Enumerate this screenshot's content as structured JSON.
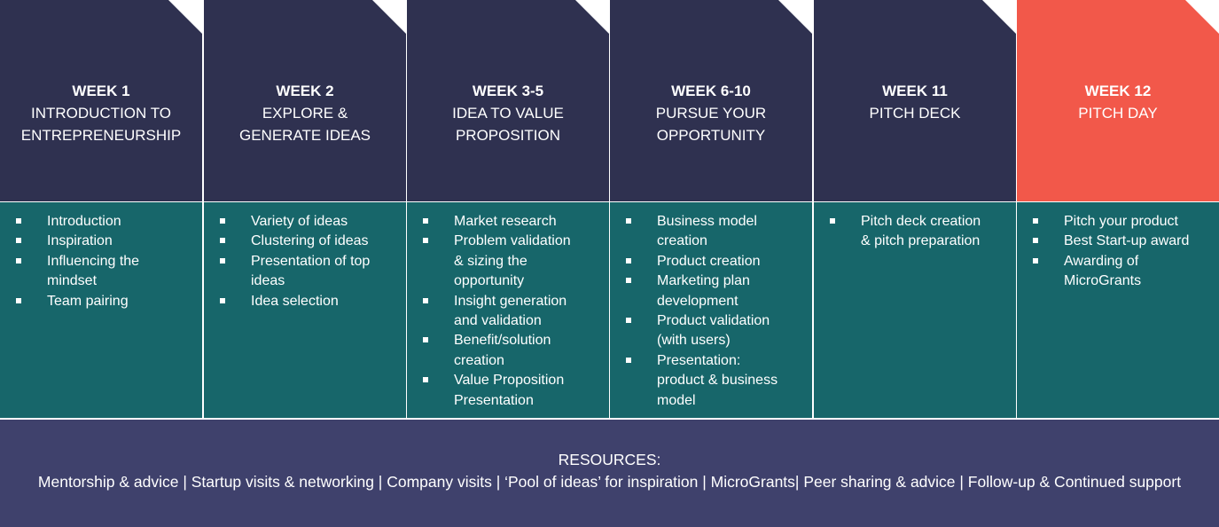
{
  "weeks": [
    {
      "week": "WEEK 1",
      "title": [
        "INTRODUCTION TO",
        "ENTREPRENEURSHIP"
      ],
      "items": [
        [
          "Introduction"
        ],
        [
          "Inspiration"
        ],
        [
          "Influencing the",
          "mindset"
        ],
        [
          "Team pairing"
        ]
      ]
    },
    {
      "week": "WEEK 2",
      "title": [
        "EXPLORE &",
        "GENERATE IDEAS"
      ],
      "items": [
        [
          "Variety of ideas"
        ],
        [
          "Clustering of ideas"
        ],
        [
          "Presentation of top",
          "ideas"
        ],
        [
          "Idea selection"
        ]
      ]
    },
    {
      "week": "WEEK 3-5",
      "title": [
        "IDEA TO VALUE",
        "PROPOSITION"
      ],
      "items": [
        [
          "Market research"
        ],
        [
          "Problem validation",
          "& sizing the",
          "opportunity"
        ],
        [
          "Insight generation",
          "and validation"
        ],
        [
          "Benefit/solution",
          "creation"
        ],
        [
          "Value Proposition",
          "Presentation"
        ]
      ]
    },
    {
      "week": "WEEK 6-10",
      "title": [
        "PURSUE YOUR",
        "OPPORTUNITY"
      ],
      "items": [
        [
          "Business model",
          "creation"
        ],
        [
          " Product creation"
        ],
        [
          " Marketing plan",
          "development"
        ],
        [
          " Product validation",
          "(with users)"
        ],
        [
          "Presentation:",
          "product & business",
          "model"
        ]
      ]
    },
    {
      "week": "WEEK 11",
      "title": [
        "PITCH DECK"
      ],
      "items": [
        [
          "Pitch deck creation",
          "& pitch preparation"
        ]
      ]
    },
    {
      "week": "WEEK 12",
      "title": [
        "PITCH DAY"
      ],
      "items": [
        [
          "Pitch your product"
        ],
        [
          "Best Start-up award"
        ],
        [
          "Awarding of",
          "MicroGrants"
        ]
      ]
    }
  ],
  "resources": {
    "heading": "RESOURCES:",
    "text": "Mentorship & advice | Startup visits & networking | Company visits | ‘Pool of ideas’ for inspiration | MicroGrants| Peer sharing & advice | Follow-up & Continued support"
  },
  "colors": {
    "header": "#2f3150",
    "highlight_header": "#f2584a",
    "body": "#17666a",
    "resources": "#3f416c"
  }
}
